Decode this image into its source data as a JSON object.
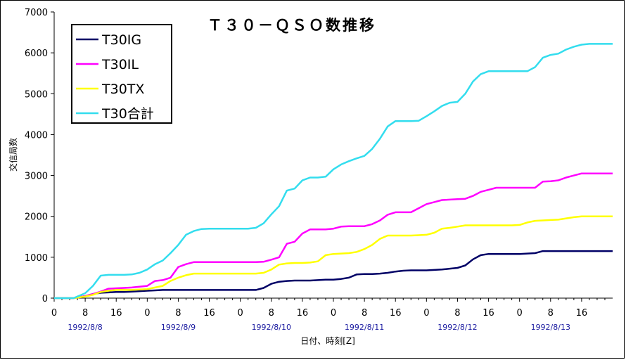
{
  "chart_data": {
    "type": "line",
    "title": "Ｔ３０－ＱＳＯ数推移",
    "xlabel": "日付、時刻[Z]",
    "ylabel": "交信局数",
    "ylim": [
      0,
      7000
    ],
    "yticks": [
      0,
      1000,
      2000,
      3000,
      4000,
      5000,
      6000,
      7000
    ],
    "xlim": [
      0,
      144
    ],
    "xticks": [
      {
        "x": 0,
        "label": "0"
      },
      {
        "x": 8,
        "label": "8"
      },
      {
        "x": 16,
        "label": "16"
      },
      {
        "x": 24,
        "label": "0"
      },
      {
        "x": 32,
        "label": "8"
      },
      {
        "x": 40,
        "label": "16"
      },
      {
        "x": 48,
        "label": "0"
      },
      {
        "x": 56,
        "label": "8"
      },
      {
        "x": 64,
        "label": "16"
      },
      {
        "x": 72,
        "label": "0"
      },
      {
        "x": 80,
        "label": "8"
      },
      {
        "x": 88,
        "label": "16"
      },
      {
        "x": 96,
        "label": "0"
      },
      {
        "x": 104,
        "label": "8"
      },
      {
        "x": 112,
        "label": "16"
      },
      {
        "x": 120,
        "label": "0"
      },
      {
        "x": 128,
        "label": "8"
      },
      {
        "x": 136,
        "label": "16"
      }
    ],
    "date_labels": [
      {
        "x": 8,
        "label": "1992/8/8"
      },
      {
        "x": 32,
        "label": "1992/8/9"
      },
      {
        "x": 56,
        "label": "1992/8/10"
      },
      {
        "x": 80,
        "label": "1992/8/11"
      },
      {
        "x": 104,
        "label": "1992/8/12"
      },
      {
        "x": 128,
        "label": "1992/8/13"
      }
    ],
    "grid": false,
    "legend_position": "top-left",
    "series": [
      {
        "name": "T30IG",
        "color": "#000066",
        "x": [
          0,
          5,
          8,
          10,
          12,
          14,
          16,
          18,
          20,
          22,
          24,
          26,
          28,
          30,
          32,
          34,
          36,
          38,
          40,
          42,
          44,
          46,
          48,
          50,
          52,
          54,
          56,
          58,
          60,
          62,
          64,
          66,
          68,
          70,
          72,
          74,
          76,
          78,
          80,
          82,
          84,
          86,
          88,
          90,
          92,
          94,
          96,
          98,
          100,
          102,
          104,
          106,
          108,
          110,
          112,
          114,
          116,
          118,
          120,
          122,
          124,
          126,
          128,
          130,
          132,
          134,
          136,
          138,
          140,
          142,
          144
        ],
        "y": [
          0,
          0,
          50,
          100,
          130,
          140,
          150,
          150,
          160,
          170,
          180,
          190,
          200,
          200,
          200,
          200,
          200,
          200,
          200,
          200,
          200,
          200,
          200,
          200,
          200,
          250,
          350,
          400,
          420,
          430,
          430,
          430,
          440,
          450,
          450,
          470,
          500,
          580,
          590,
          590,
          600,
          620,
          650,
          670,
          680,
          680,
          680,
          690,
          700,
          720,
          740,
          800,
          950,
          1050,
          1080,
          1080,
          1080,
          1080,
          1080,
          1090,
          1100,
          1150,
          1150,
          1150,
          1150,
          1150,
          1150,
          1150,
          1150,
          1150,
          1150
        ]
      },
      {
        "name": "T30IL",
        "color": "#ff00ff",
        "x": [
          0,
          5,
          8,
          10,
          12,
          14,
          16,
          18,
          20,
          22,
          24,
          26,
          28,
          30,
          32,
          34,
          36,
          38,
          40,
          42,
          44,
          46,
          48,
          50,
          52,
          54,
          56,
          58,
          60,
          62,
          64,
          66,
          68,
          70,
          72,
          74,
          76,
          78,
          80,
          82,
          84,
          86,
          88,
          90,
          92,
          94,
          96,
          98,
          100,
          102,
          104,
          106,
          108,
          110,
          112,
          114,
          116,
          118,
          120,
          122,
          124,
          126,
          128,
          130,
          132,
          134,
          136,
          138,
          140,
          142,
          144
        ],
        "y": [
          0,
          0,
          50,
          100,
          160,
          230,
          240,
          250,
          260,
          280,
          300,
          420,
          440,
          500,
          760,
          830,
          880,
          880,
          880,
          880,
          880,
          880,
          880,
          880,
          880,
          890,
          940,
          1000,
          1330,
          1380,
          1580,
          1680,
          1680,
          1680,
          1700,
          1750,
          1760,
          1760,
          1760,
          1810,
          1900,
          2040,
          2100,
          2100,
          2100,
          2200,
          2300,
          2350,
          2400,
          2410,
          2420,
          2430,
          2500,
          2600,
          2650,
          2700,
          2700,
          2700,
          2700,
          2700,
          2700,
          2850,
          2860,
          2880,
          2950,
          3000,
          3050,
          3050,
          3050,
          3050,
          3050
        ]
      },
      {
        "name": "T30TX",
        "color": "#ffff00",
        "x": [
          0,
          5,
          8,
          10,
          12,
          14,
          16,
          18,
          20,
          22,
          24,
          26,
          28,
          30,
          32,
          34,
          36,
          38,
          40,
          42,
          44,
          46,
          48,
          50,
          52,
          54,
          56,
          58,
          60,
          62,
          64,
          66,
          68,
          70,
          72,
          74,
          76,
          78,
          80,
          82,
          84,
          86,
          88,
          90,
          92,
          94,
          96,
          98,
          100,
          102,
          104,
          106,
          108,
          110,
          112,
          114,
          116,
          118,
          120,
          122,
          124,
          126,
          128,
          130,
          132,
          134,
          136,
          138,
          140,
          142,
          144
        ],
        "y": [
          0,
          0,
          40,
          80,
          150,
          180,
          200,
          200,
          200,
          210,
          220,
          260,
          300,
          420,
          500,
          560,
          600,
          600,
          600,
          600,
          600,
          600,
          600,
          600,
          600,
          620,
          700,
          820,
          850,
          860,
          860,
          870,
          900,
          1050,
          1080,
          1090,
          1100,
          1130,
          1200,
          1300,
          1450,
          1530,
          1530,
          1530,
          1530,
          1540,
          1550,
          1600,
          1700,
          1720,
          1750,
          1780,
          1780,
          1780,
          1780,
          1780,
          1780,
          1780,
          1790,
          1850,
          1890,
          1900,
          1910,
          1920,
          1950,
          1980,
          2000,
          2000,
          2000,
          2000,
          2000
        ]
      },
      {
        "name": "T30合計",
        "color": "#33ddee",
        "x": [
          0,
          5,
          8,
          10,
          12,
          14,
          16,
          18,
          20,
          22,
          24,
          26,
          28,
          30,
          32,
          34,
          36,
          38,
          40,
          42,
          44,
          46,
          48,
          50,
          52,
          54,
          56,
          58,
          60,
          62,
          64,
          66,
          68,
          70,
          72,
          74,
          76,
          78,
          80,
          82,
          84,
          86,
          88,
          90,
          92,
          94,
          96,
          98,
          100,
          102,
          104,
          106,
          108,
          110,
          112,
          114,
          116,
          118,
          120,
          122,
          124,
          126,
          128,
          130,
          132,
          134,
          136,
          138,
          140,
          142,
          144
        ],
        "y": [
          0,
          0,
          120,
          300,
          550,
          570,
          570,
          570,
          580,
          620,
          700,
          830,
          920,
          1100,
          1300,
          1550,
          1640,
          1690,
          1700,
          1700,
          1700,
          1700,
          1700,
          1700,
          1720,
          1830,
          2050,
          2250,
          2630,
          2680,
          2880,
          2950,
          2950,
          2970,
          3150,
          3270,
          3350,
          3420,
          3480,
          3650,
          3900,
          4200,
          4330,
          4330,
          4330,
          4340,
          4450,
          4570,
          4700,
          4780,
          4800,
          5000,
          5300,
          5480,
          5550,
          5550,
          5550,
          5550,
          5550,
          5550,
          5650,
          5880,
          5950,
          5980,
          6080,
          6150,
          6200,
          6220,
          6220,
          6220,
          6220
        ]
      }
    ]
  }
}
